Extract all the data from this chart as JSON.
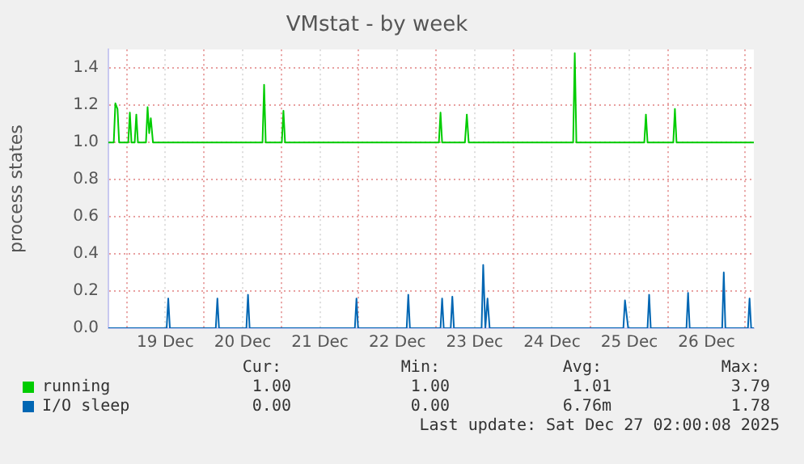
{
  "chart_data": {
    "type": "line",
    "title": "VMstat - by week",
    "ylabel": "process states",
    "xlim": [
      "2025-12-18T18:20",
      "2025-12-27T02:40"
    ],
    "xticks": [
      {
        "value": "2025-12-19T00:00",
        "label": null
      },
      {
        "value": "2025-12-19T12:00",
        "label": "19 Dec"
      },
      {
        "value": "2025-12-20T00:00",
        "label": null
      },
      {
        "value": "2025-12-20T12:00",
        "label": "20 Dec"
      },
      {
        "value": "2025-12-21T00:00",
        "label": null
      },
      {
        "value": "2025-12-21T12:00",
        "label": "21 Dec"
      },
      {
        "value": "2025-12-22T00:00",
        "label": null
      },
      {
        "value": "2025-12-22T12:00",
        "label": "22 Dec"
      },
      {
        "value": "2025-12-23T00:00",
        "label": null
      },
      {
        "value": "2025-12-23T12:00",
        "label": "23 Dec"
      },
      {
        "value": "2025-12-24T00:00",
        "label": null
      },
      {
        "value": "2025-12-24T12:00",
        "label": "24 Dec"
      },
      {
        "value": "2025-12-25T00:00",
        "label": null
      },
      {
        "value": "2025-12-25T12:00",
        "label": "25 Dec"
      },
      {
        "value": "2025-12-26T00:00",
        "label": null
      },
      {
        "value": "2025-12-26T12:00",
        "label": "26 Dec"
      },
      {
        "value": "2025-12-27T00:00",
        "label": null
      }
    ],
    "ylim": [
      0,
      1.5
    ],
    "yticks": [
      {
        "value": 0,
        "label": "0.0"
      },
      {
        "value": 0.2,
        "label": "0.2"
      },
      {
        "value": 0.4,
        "label": "0.4"
      },
      {
        "value": 0.6,
        "label": "0.6"
      },
      {
        "value": 0.8,
        "label": "0.8"
      },
      {
        "value": 1,
        "label": "1.0"
      },
      {
        "value": 1.2,
        "label": "1.2"
      },
      {
        "value": 1.4,
        "label": "1.4"
      }
    ],
    "grid": true,
    "legend": "bottom",
    "series": [
      {
        "name": "running",
        "color": "#00cc00",
        "x": [
          "2025-12-18T18:20",
          "2025-12-18T20:00",
          "2025-12-18T20:30",
          "2025-12-18T21:10",
          "2025-12-18T21:40",
          "2025-12-19T00:30",
          "2025-12-19T01:00",
          "2025-12-19T01:30",
          "2025-12-19T02:30",
          "2025-12-19T03:00",
          "2025-12-19T03:30",
          "2025-12-19T06:00",
          "2025-12-19T06:30",
          "2025-12-19T07:00",
          "2025-12-19T07:30",
          "2025-12-19T08:10",
          "2025-12-20T18:10",
          "2025-12-20T18:40",
          "2025-12-20T19:10",
          "2025-12-21T00:10",
          "2025-12-21T00:40",
          "2025-12-21T01:10",
          "2025-12-23T00:55",
          "2025-12-23T01:25",
          "2025-12-23T01:55",
          "2025-12-23T09:00",
          "2025-12-23T09:35",
          "2025-12-23T10:10",
          "2025-12-24T18:35",
          "2025-12-24T19:05",
          "2025-12-24T19:35",
          "2025-12-25T16:40",
          "2025-12-25T17:10",
          "2025-12-25T17:40",
          "2025-12-26T01:40",
          "2025-12-26T02:10",
          "2025-12-26T02:40",
          "2025-12-27T02:40"
        ],
        "values": [
          1,
          1,
          1.21,
          1.18,
          1,
          1,
          1.16,
          1,
          1,
          1.15,
          1,
          1,
          1.19,
          1.05,
          1.13,
          1,
          1,
          1.31,
          1,
          1,
          1.17,
          1,
          1,
          1.16,
          1,
          1,
          1.15,
          1,
          1,
          1.48,
          1,
          1,
          1.15,
          1,
          1,
          1.18,
          1,
          1
        ]
      },
      {
        "name": "I/O sleep",
        "color": "#0066b3",
        "x": [
          "2025-12-18T18:20",
          "2025-12-19T12:25",
          "2025-12-19T12:55",
          "2025-12-19T13:25",
          "2025-12-20T03:40",
          "2025-12-20T04:10",
          "2025-12-20T04:40",
          "2025-12-20T13:10",
          "2025-12-20T13:40",
          "2025-12-20T14:10",
          "2025-12-21T22:50",
          "2025-12-21T23:20",
          "2025-12-21T23:50",
          "2025-12-22T14:55",
          "2025-12-22T15:25",
          "2025-12-22T15:55",
          "2025-12-23T01:25",
          "2025-12-23T01:55",
          "2025-12-23T02:25",
          "2025-12-23T04:35",
          "2025-12-23T05:05",
          "2025-12-23T05:35",
          "2025-12-23T14:10",
          "2025-12-23T14:40",
          "2025-12-23T15:20",
          "2025-12-23T16:00",
          "2025-12-23T16:40",
          "2025-12-25T10:10",
          "2025-12-25T10:40",
          "2025-12-25T11:40",
          "2025-12-25T17:40",
          "2025-12-25T18:10",
          "2025-12-25T18:40",
          "2025-12-26T05:45",
          "2025-12-26T06:15",
          "2025-12-26T06:45",
          "2025-12-26T16:50",
          "2025-12-26T17:20",
          "2025-12-26T17:50",
          "2025-12-27T00:50",
          "2025-12-27T01:20",
          "2025-12-27T01:50",
          "2025-12-27T02:40"
        ],
        "values": [
          0,
          0,
          0.16,
          0,
          0,
          0.16,
          0,
          0,
          0.18,
          0,
          0,
          0.16,
          0,
          0,
          0.18,
          0,
          0,
          0.16,
          0,
          0,
          0.17,
          0,
          0,
          0.34,
          0,
          0.16,
          0,
          0,
          0.15,
          0,
          0,
          0.18,
          0,
          0,
          0.19,
          0,
          0,
          0.3,
          0,
          0,
          0.16,
          0,
          0
        ]
      }
    ],
    "annotations": [
      "Cur:",
      "Min:",
      "Avg:",
      "Max:",
      "1.00",
      "1.00",
      "1.01",
      "3.79",
      "0.00",
      "0.00",
      "6.76m",
      "1.78",
      "Last update: Sat Dec 27 02:00:08 2025"
    ]
  }
}
